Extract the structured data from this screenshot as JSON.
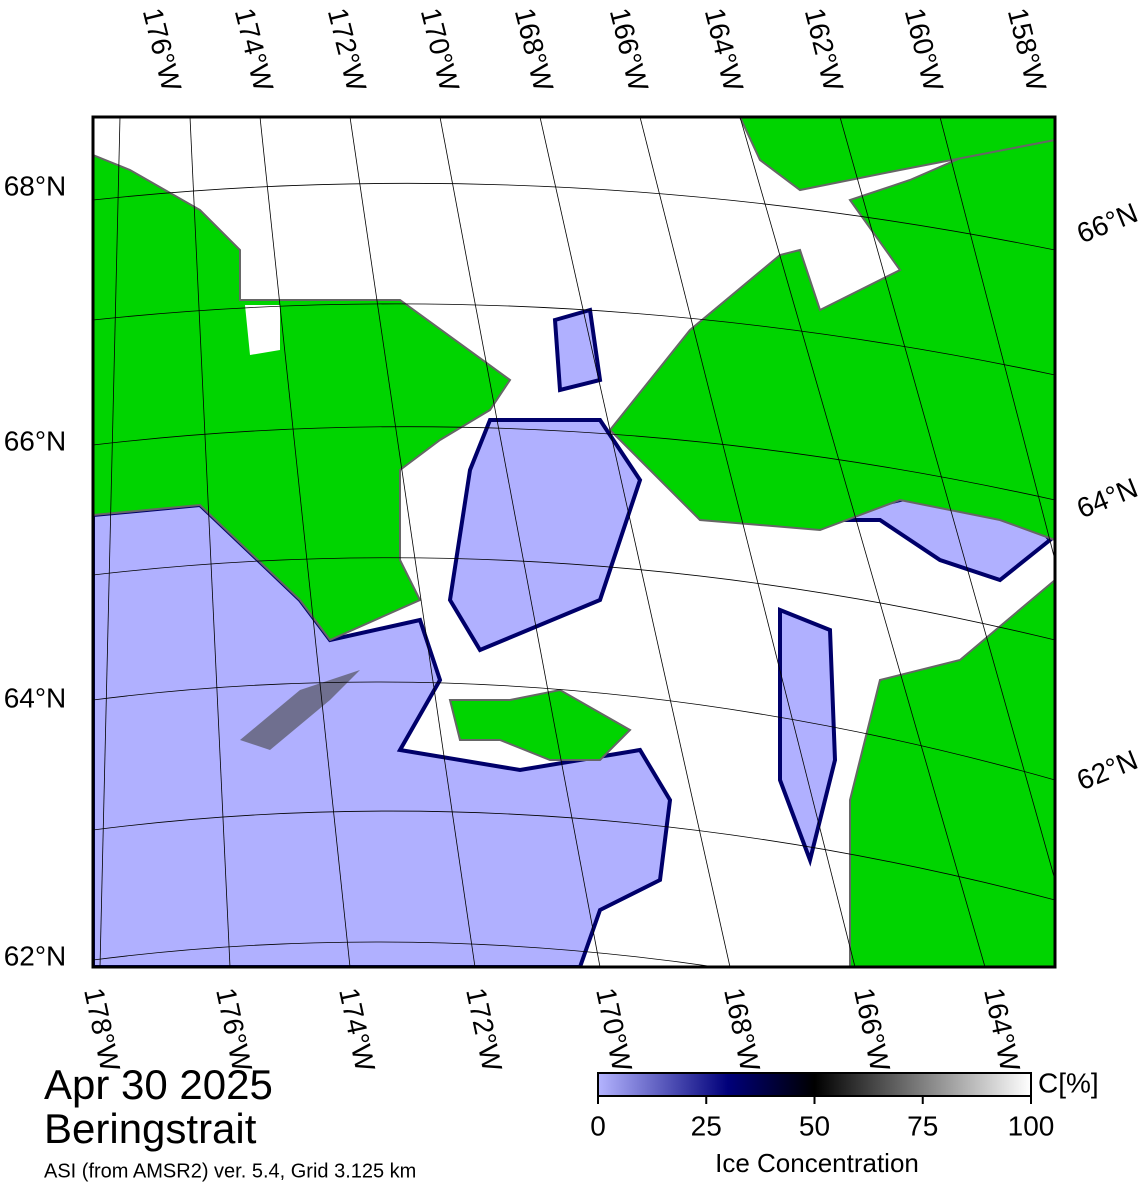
{
  "title": {
    "date": "Apr 30 2025",
    "region": "Beringstrait",
    "source": "ASI (from AMSR2) ver. 5.4,  Grid 3.125 km"
  },
  "map": {
    "top_lon_labels": [
      "176°W",
      "174°W",
      "172°W",
      "170°W",
      "168°W",
      "166°W",
      "164°W",
      "162°W",
      "160°W",
      "158°W"
    ],
    "bottom_lon_labels": [
      "178°W",
      "176°W",
      "174°W",
      "172°W",
      "170°W",
      "168°W",
      "166°W",
      "164°W"
    ],
    "left_lat_labels": [
      "68°N",
      "66°N",
      "64°N",
      "62°N"
    ],
    "right_lat_labels": [
      "66°N",
      "64°N",
      "62°N"
    ]
  },
  "colorbar": {
    "label": "Ice Concentration",
    "unit": "C[%]",
    "lim": [
      0,
      100
    ],
    "ticks": [
      0,
      25,
      50,
      75,
      100
    ]
  }
}
